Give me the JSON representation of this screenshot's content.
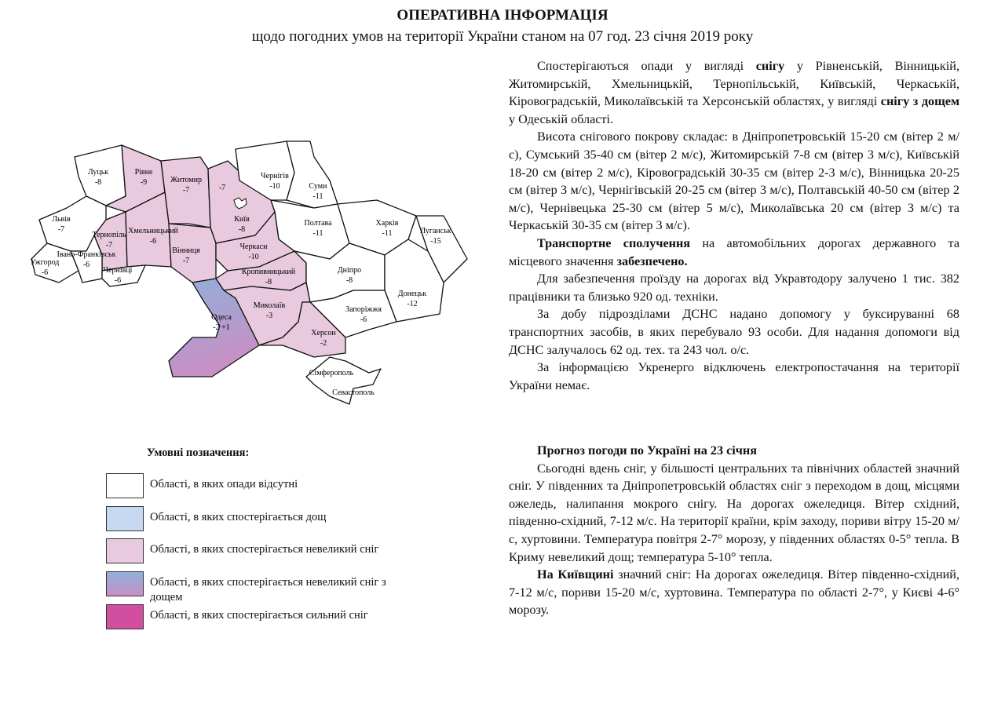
{
  "header": {
    "title": "ОПЕРАТИВНА ІНФОРМАЦІЯ",
    "subtitle": "щодо погодних умов на території України станом на 07 год. 23 січня 2019 року"
  },
  "colors": {
    "no_precip": "#ffffff",
    "rain": "#c6d9f0",
    "light_snow": "#e8c9de",
    "snow_rain_from": "#8fb0da",
    "snow_rain_to": "#c98fc4",
    "heavy_snow": "#d24fa0"
  },
  "map": {
    "regions": [
      {
        "id": "lutsk",
        "name": "Луцьк",
        "temp": "-8",
        "cat": "no_precip"
      },
      {
        "id": "rivne",
        "name": "Рівне",
        "temp": "-9",
        "cat": "light_snow"
      },
      {
        "id": "zhytomyr",
        "name": "Житомир",
        "temp": "-7",
        "cat": "light_snow"
      },
      {
        "id": "kyiv-oblast",
        "name": "",
        "temp": "-7",
        "cat": "light_snow"
      },
      {
        "id": "kyiv",
        "name": "Київ",
        "temp": "-8",
        "cat": "light_snow"
      },
      {
        "id": "chernihiv",
        "name": "Чернігів",
        "temp": "-10",
        "cat": "no_precip"
      },
      {
        "id": "sumy",
        "name": "Суми",
        "temp": "-11",
        "cat": "no_precip"
      },
      {
        "id": "poltava",
        "name": "Полтава",
        "temp": "-11",
        "cat": "no_precip"
      },
      {
        "id": "kharkiv",
        "name": "Харків",
        "temp": "-11",
        "cat": "no_precip"
      },
      {
        "id": "luhansk",
        "name": "Луганськ",
        "temp": "-15",
        "cat": "no_precip"
      },
      {
        "id": "lviv",
        "name": "Львів",
        "temp": "-7",
        "cat": "no_precip"
      },
      {
        "id": "ternopil",
        "name": "Тернопіль",
        "temp": "-7",
        "cat": "light_snow"
      },
      {
        "id": "khmelnytskyi",
        "name": "Хмельницький",
        "temp": "-6",
        "cat": "light_snow"
      },
      {
        "id": "vinnytsia",
        "name": "Вінниця",
        "temp": "-7",
        "cat": "light_snow"
      },
      {
        "id": "cherkasy",
        "name": "Черкаси",
        "temp": "-10",
        "cat": "light_snow"
      },
      {
        "id": "ivano-frankivsk",
        "name": "Івано-Франківськ",
        "temp": "-6",
        "cat": "no_precip"
      },
      {
        "id": "uzhhorod",
        "name": "Ужгород",
        "temp": "-6",
        "cat": "no_precip"
      },
      {
        "id": "chernivtsi",
        "name": "Чернівці",
        "temp": "-6",
        "cat": "no_precip"
      },
      {
        "id": "kropyvnytskyi",
        "name": "Кропивницький",
        "temp": "-8",
        "cat": "light_snow"
      },
      {
        "id": "dnipro",
        "name": "Дніпро",
        "temp": "-8",
        "cat": "no_precip"
      },
      {
        "id": "donetsk",
        "name": "Донецьк",
        "temp": "-12",
        "cat": "no_precip"
      },
      {
        "id": "mykolaiv",
        "name": "Миколаїв",
        "temp": "-3",
        "cat": "light_snow"
      },
      {
        "id": "odesa",
        "name": "Одеса",
        "temp": "-2  +1",
        "cat": "snow_rain"
      },
      {
        "id": "zaporizhzhia",
        "name": "Запоріжжя",
        "temp": "-6",
        "cat": "no_precip"
      },
      {
        "id": "kherson",
        "name": "Херсон",
        "temp": "-2",
        "cat": "light_snow"
      },
      {
        "id": "simferopol",
        "name": "Сімферополь",
        "temp": "",
        "cat": "no_precip"
      },
      {
        "id": "sevastopol",
        "name": "Севастополь",
        "temp": "",
        "cat": "no_precip"
      }
    ]
  },
  "legend": {
    "title": "Умовні позначення:",
    "items": [
      {
        "label": "Області, в яких опади відсутні",
        "cat": "no_precip"
      },
      {
        "label": "Області, в яких спостерігається дощ",
        "cat": "rain"
      },
      {
        "label": "Області, в яких спостерігається невеликий сніг",
        "cat": "light_snow"
      },
      {
        "label": "Області, в яких спостерігається невеликий сніг з дощем",
        "cat": "snow_rain"
      },
      {
        "label": "Області, в яких спостерігається сильний сніг",
        "cat": "heavy_snow"
      }
    ]
  },
  "report": {
    "paragraphs": [
      [
        {
          "t": "Спостерігаються опади у вигляді "
        },
        {
          "t": "снігу",
          "b": true
        },
        {
          "t": " у Рівненській, Вінницькій, Житомирській, Хмельницькій, Тернопільській, Київській, Черкаській, Кіровоградській, Миколаївській та Херсонській областях, у вигляді "
        },
        {
          "t": "снігу з дощем",
          "b": true
        },
        {
          "t": " у Одеській області."
        }
      ],
      [
        {
          "t": "Висота снігового покрову складає: в Дніпропетровській 15-20 см (вітер 2 м/с), Сумський 35-40 см (вітер 2 м/с), Житомирській 7-8 см (вітер 3 м/с), Київській 18-20 см (вітер 2 м/с), Кіровоградській 30-35 см (вітер 2-3 м/с), Вінницька 20-25 см (вітер 3 м/с), Чернігівській 20-25 см (вітер 3 м/с), Полтавській 40-50 см (вітер 2 м/с), Чернівецька 25-30 см (вітер 5 м/с), Миколаївська 20 см (вітер 3 м/с) та Черкаській 30-35 см (вітер 3 м/с)."
        }
      ],
      [
        {
          "t": "Транспортне сполучення",
          "b": true
        },
        {
          "t": " на автомобільних дорогах державного та місцевого значення "
        },
        {
          "t": "забезпечено.",
          "b": true
        }
      ],
      [
        {
          "t": "Для забезпечення проїзду на дорогах від Укравтодору залучено 1 тис. 382 працівники та близько 920 од. техніки."
        }
      ],
      [
        {
          "t": "За добу підрозділами ДСНС надано допомогу у буксируванні 68 транспортних засобів, в яких перебувало 93 особи. Для надання допомоги від ДСНС залучалось 62 од. тех. та 243 чол. о/с."
        }
      ],
      [
        {
          "t": "За інформацією Укренерго відключень електропостачання на території України немає."
        }
      ]
    ]
  },
  "forecast": {
    "heading": "Прогноз погоди по Україні на 23 січня",
    "paragraphs": [
      [
        {
          "t": "Сьогодні вдень сніг, у більшості центральних та північних областей значний сніг. У південних та Дніпропетровській областях сніг з переходом в дощ, місцями ожеледь, налипання мокрого снігу. На дорогах ожеледиця. Вітер східний, південно-східний, 7-12 м/с. На території країни, крім заходу, пориви вітру 15-20 м/с, хуртовини. Температура повітря 2-7° морозу, у південних областях 0-5° тепла. В Криму невеликий дощ; температура 5-10° тепла."
        }
      ],
      [
        {
          "t": "На Київщині",
          "b": true
        },
        {
          "t": " значний сніг: На дорогах ожеледиця. Вітер південно-східний, 7-12 м/с, пориви 15-20 м/с, хуртовина. Температура по області 2-7°, у Києві 4-6° морозу."
        }
      ]
    ]
  }
}
